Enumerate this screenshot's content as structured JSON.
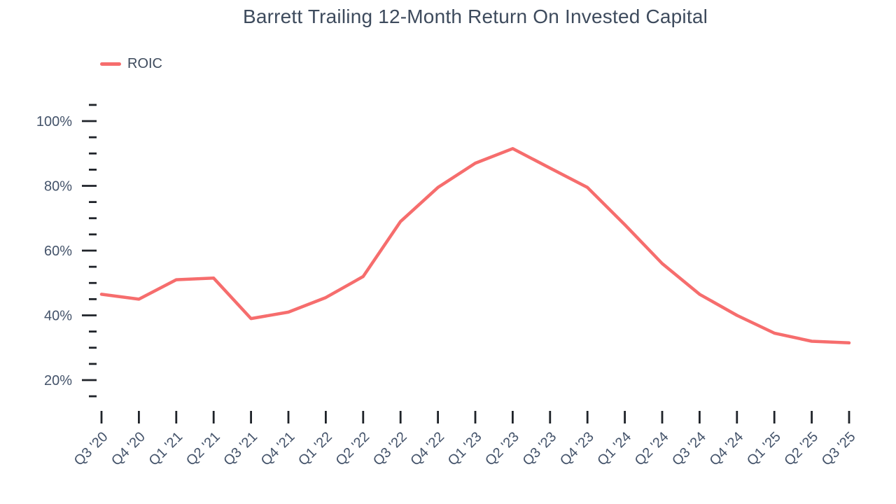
{
  "title": "Barrett Trailing 12-Month Return On Invested Capital",
  "legend": {
    "label": "ROIC"
  },
  "colors": {
    "line": "#F66D6D",
    "title_text": "#3E4B5D",
    "axis_label": "#44536A",
    "tick": "#1F2329",
    "background": "#FFFFFF"
  },
  "chart_data": {
    "type": "line",
    "title": "Barrett Trailing 12-Month Return On Invested Capital",
    "categories": [
      "Q3 '20",
      "Q4 '20",
      "Q1 '21",
      "Q2 '21",
      "Q3 '21",
      "Q4 '21",
      "Q1 '22",
      "Q2 '22",
      "Q3 '22",
      "Q4 '22",
      "Q1 '23",
      "Q2 '23",
      "Q3 '23",
      "Q4 '23",
      "Q1 '24",
      "Q2 '24",
      "Q3 '24",
      "Q4 '24",
      "Q1 '25",
      "Q2 '25",
      "Q3 '25"
    ],
    "series": [
      {
        "name": "ROIC",
        "values": [
          46.5,
          45,
          51,
          51.5,
          39,
          41,
          45.5,
          52,
          69,
          79.5,
          87,
          91.5,
          85.5,
          79.5,
          68,
          56,
          46.5,
          40,
          34.5,
          32,
          31.5
        ]
      }
    ],
    "xlabel": "",
    "ylabel": "",
    "unit": "%",
    "ylim": [
      15,
      105
    ],
    "y_axis": {
      "tick_values": [
        100,
        80,
        60,
        40,
        20
      ],
      "tick_labels": [
        "100%",
        "80%",
        "60%",
        "40%",
        "20%"
      ],
      "minor_tick_step": 5,
      "minor_tick_range": [
        15,
        105
      ]
    },
    "grid": false,
    "legend_position": "top-left"
  }
}
